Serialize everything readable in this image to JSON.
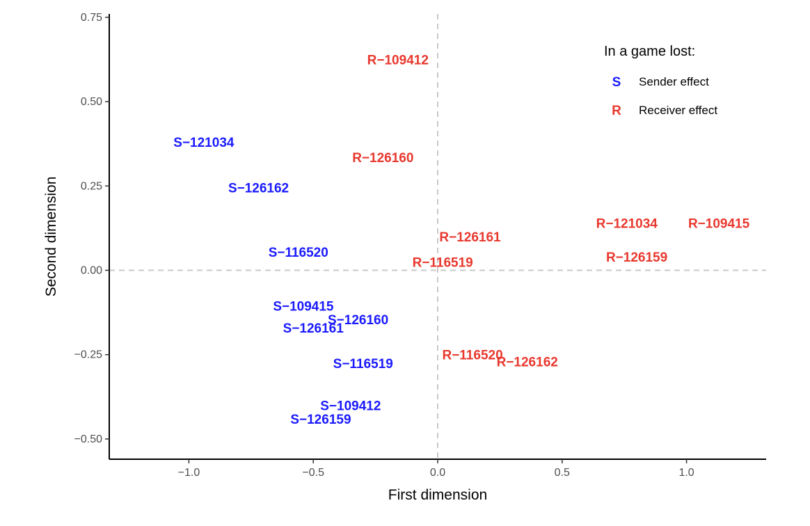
{
  "chart_data": {
    "type": "scatter",
    "xlabel": "First dimension",
    "ylabel": "Second dimension",
    "xlim": [
      -1.32,
      1.32
    ],
    "ylim": [
      -0.56,
      0.76
    ],
    "x_ticks": [
      {
        "value": -1.0,
        "label": "−1.0"
      },
      {
        "value": -0.5,
        "label": "−0.5"
      },
      {
        "value": 0.0,
        "label": "0.0"
      },
      {
        "value": 0.5,
        "label": "0.5"
      },
      {
        "value": 1.0,
        "label": "1.0"
      }
    ],
    "y_ticks": [
      {
        "value": 0.75,
        "label": "0.75"
      },
      {
        "value": 0.5,
        "label": "0.50"
      },
      {
        "value": 0.25,
        "label": "0.25"
      },
      {
        "value": 0.0,
        "label": "0.00"
      },
      {
        "value": -0.25,
        "label": "−0.25"
      },
      {
        "value": -0.5,
        "label": "−0.50"
      }
    ],
    "reference_lines": {
      "x": 0,
      "y": 0,
      "style": "dashed"
    },
    "grid": false,
    "legend": {
      "title": "In a game lost:",
      "position": "top-right",
      "entries": [
        {
          "key": "S",
          "label": "Sender effect",
          "color": "#1a1aff"
        },
        {
          "key": "R",
          "label": "Receiver effect",
          "color": "#e8382e"
        }
      ]
    },
    "series": [
      {
        "key": "S",
        "color": "#1a1aff",
        "points": [
          {
            "label": "S−121034",
            "x": -0.94,
            "y": 0.38
          },
          {
            "label": "S−126162",
            "x": -0.72,
            "y": 0.245
          },
          {
            "label": "S−116520",
            "x": -0.56,
            "y": 0.055
          },
          {
            "label": "S−109415",
            "x": -0.54,
            "y": -0.105
          },
          {
            "label": "S−126161",
            "x": -0.5,
            "y": -0.17
          },
          {
            "label": "S−126160",
            "x": -0.32,
            "y": -0.145
          },
          {
            "label": "S−116519",
            "x": -0.3,
            "y": -0.275
          },
          {
            "label": "S−109412",
            "x": -0.35,
            "y": -0.4
          },
          {
            "label": "S−126159",
            "x": -0.47,
            "y": -0.44
          }
        ]
      },
      {
        "key": "R",
        "color": "#e8382e",
        "points": [
          {
            "label": "R−109412",
            "x": -0.16,
            "y": 0.625
          },
          {
            "label": "R−126160",
            "x": -0.22,
            "y": 0.335
          },
          {
            "label": "R−126161",
            "x": 0.13,
            "y": 0.1
          },
          {
            "label": "R−116519",
            "x": 0.02,
            "y": 0.025
          },
          {
            "label": "R−121034",
            "x": 0.76,
            "y": 0.14
          },
          {
            "label": "R−109415",
            "x": 1.13,
            "y": 0.14
          },
          {
            "label": "R−126159",
            "x": 0.8,
            "y": 0.04
          },
          {
            "label": "R−116520",
            "x": 0.14,
            "y": -0.25
          },
          {
            "label": "R−126162",
            "x": 0.36,
            "y": -0.27
          }
        ]
      }
    ]
  }
}
